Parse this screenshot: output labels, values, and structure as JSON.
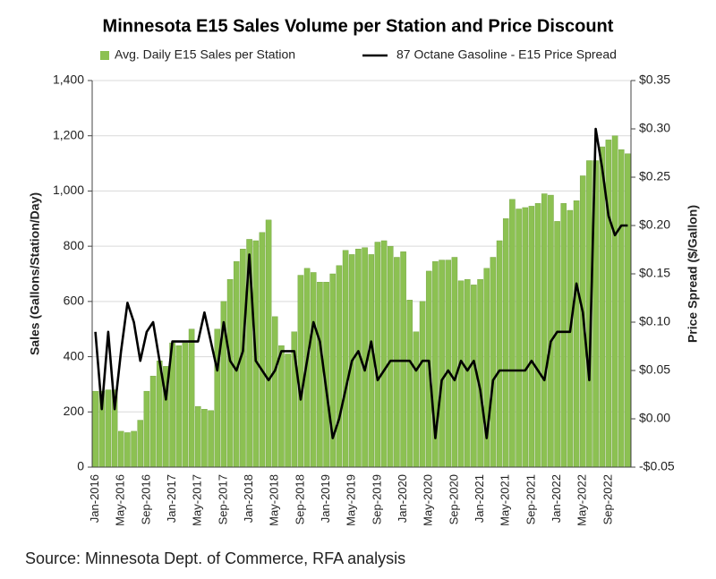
{
  "chart_data": {
    "type": "bar_line",
    "title": "Minnesota E15 Sales Volume per Station and Price Discount",
    "y_label": "Sales (Gallons/Station/Day)",
    "y2_label": "Price Spread ($/Gallon)",
    "source": "Source: Minnesota Dept. of Commerce, RFA analysis",
    "categories": [
      "Jan-2016",
      null,
      null,
      null,
      "May-2016",
      null,
      null,
      null,
      "Sep-2016",
      null,
      null,
      null,
      "Jan-2017",
      null,
      null,
      null,
      "May-2017",
      null,
      null,
      null,
      "Sep-2017",
      null,
      null,
      null,
      "Jan-2018",
      null,
      null,
      null,
      "May-2018",
      null,
      null,
      null,
      "Sep-2018",
      null,
      null,
      null,
      "Jan-2019",
      null,
      null,
      null,
      "May-2019",
      null,
      null,
      null,
      "Sep-2019",
      null,
      null,
      null,
      "Jan-2020",
      null,
      null,
      null,
      "May-2020",
      null,
      null,
      null,
      "Sep-2020",
      null,
      null,
      null,
      "Jan-2021",
      null,
      null,
      null,
      "May-2021",
      null,
      null,
      null,
      "Sep-2021",
      null,
      null,
      null,
      "Jan-2022",
      null,
      null,
      null,
      "May-2022",
      null,
      null,
      null,
      "Sep-2022",
      null,
      null,
      null
    ],
    "series": [
      {
        "name": "Avg. Daily E15 Sales per Station",
        "type": "bar",
        "color": "#8cc152",
        "axis": "y",
        "values": [
          275,
          275,
          280,
          280,
          130,
          125,
          130,
          170,
          275,
          330,
          385,
          365,
          450,
          440,
          450,
          500,
          220,
          210,
          205,
          500,
          600,
          680,
          745,
          790,
          825,
          820,
          850,
          895,
          545,
          440,
          410,
          490,
          695,
          720,
          705,
          670,
          670,
          700,
          730,
          785,
          770,
          790,
          795,
          770,
          815,
          820,
          800,
          760,
          780,
          605,
          490,
          600,
          710,
          745,
          750,
          750,
          760,
          675,
          680,
          660,
          680,
          720,
          760,
          820,
          900,
          970,
          935,
          940,
          945,
          955,
          990,
          985,
          890,
          955,
          930,
          965,
          1055,
          1110,
          1110,
          1160,
          1185,
          1200,
          1150,
          1135
        ]
      },
      {
        "name": "87 Octane Gasoline - E15 Price Spread",
        "type": "line",
        "color": "#000000",
        "axis": "y2",
        "values": [
          0.09,
          0.01,
          0.09,
          0.01,
          0.07,
          0.12,
          0.1,
          0.06,
          0.09,
          0.1,
          0.06,
          0.02,
          0.08,
          0.08,
          0.08,
          0.08,
          0.08,
          0.11,
          0.08,
          0.05,
          0.1,
          0.06,
          0.05,
          0.07,
          0.17,
          0.06,
          0.05,
          0.04,
          0.05,
          0.07,
          0.07,
          0.07,
          0.02,
          0.06,
          0.1,
          0.08,
          0.03,
          -0.02,
          0.0,
          0.03,
          0.06,
          0.07,
          0.05,
          0.08,
          0.04,
          0.05,
          0.06,
          0.06,
          0.06,
          0.06,
          0.05,
          0.06,
          0.06,
          -0.02,
          0.04,
          0.05,
          0.04,
          0.06,
          0.05,
          0.06,
          0.03,
          -0.02,
          0.04,
          0.05,
          0.05,
          0.05,
          0.05,
          0.05,
          0.06,
          0.05,
          0.04,
          0.08,
          0.09,
          0.09,
          0.09,
          0.14,
          0.11,
          0.04,
          0.3,
          0.26,
          0.21,
          0.19,
          0.2,
          0.2
        ]
      }
    ],
    "ylim": [
      0,
      1400
    ],
    "yticks": [
      0,
      200,
      400,
      600,
      800,
      {
        "value": 1000,
        "label": "1,000"
      },
      {
        "value": 1200,
        "label": "1,200"
      },
      {
        "value": 1400,
        "label": "1,400"
      }
    ],
    "y2lim": [
      -0.05,
      0.35
    ],
    "y2ticks": [
      {
        "value": -0.05,
        "label": "-$0.05"
      },
      {
        "value": 0,
        "label": "$0.00"
      },
      {
        "value": 0.05,
        "label": "$0.05"
      },
      {
        "value": 0.1,
        "label": "$0.10"
      },
      {
        "value": 0.15,
        "label": "$0.15"
      },
      {
        "value": 0.2,
        "label": "$0.20"
      },
      {
        "value": 0.25,
        "label": "$0.25"
      },
      {
        "value": 0.3,
        "label": "$0.30"
      },
      {
        "value": 0.35,
        "label": "$0.35"
      }
    ],
    "grid": true,
    "legend": "top"
  }
}
